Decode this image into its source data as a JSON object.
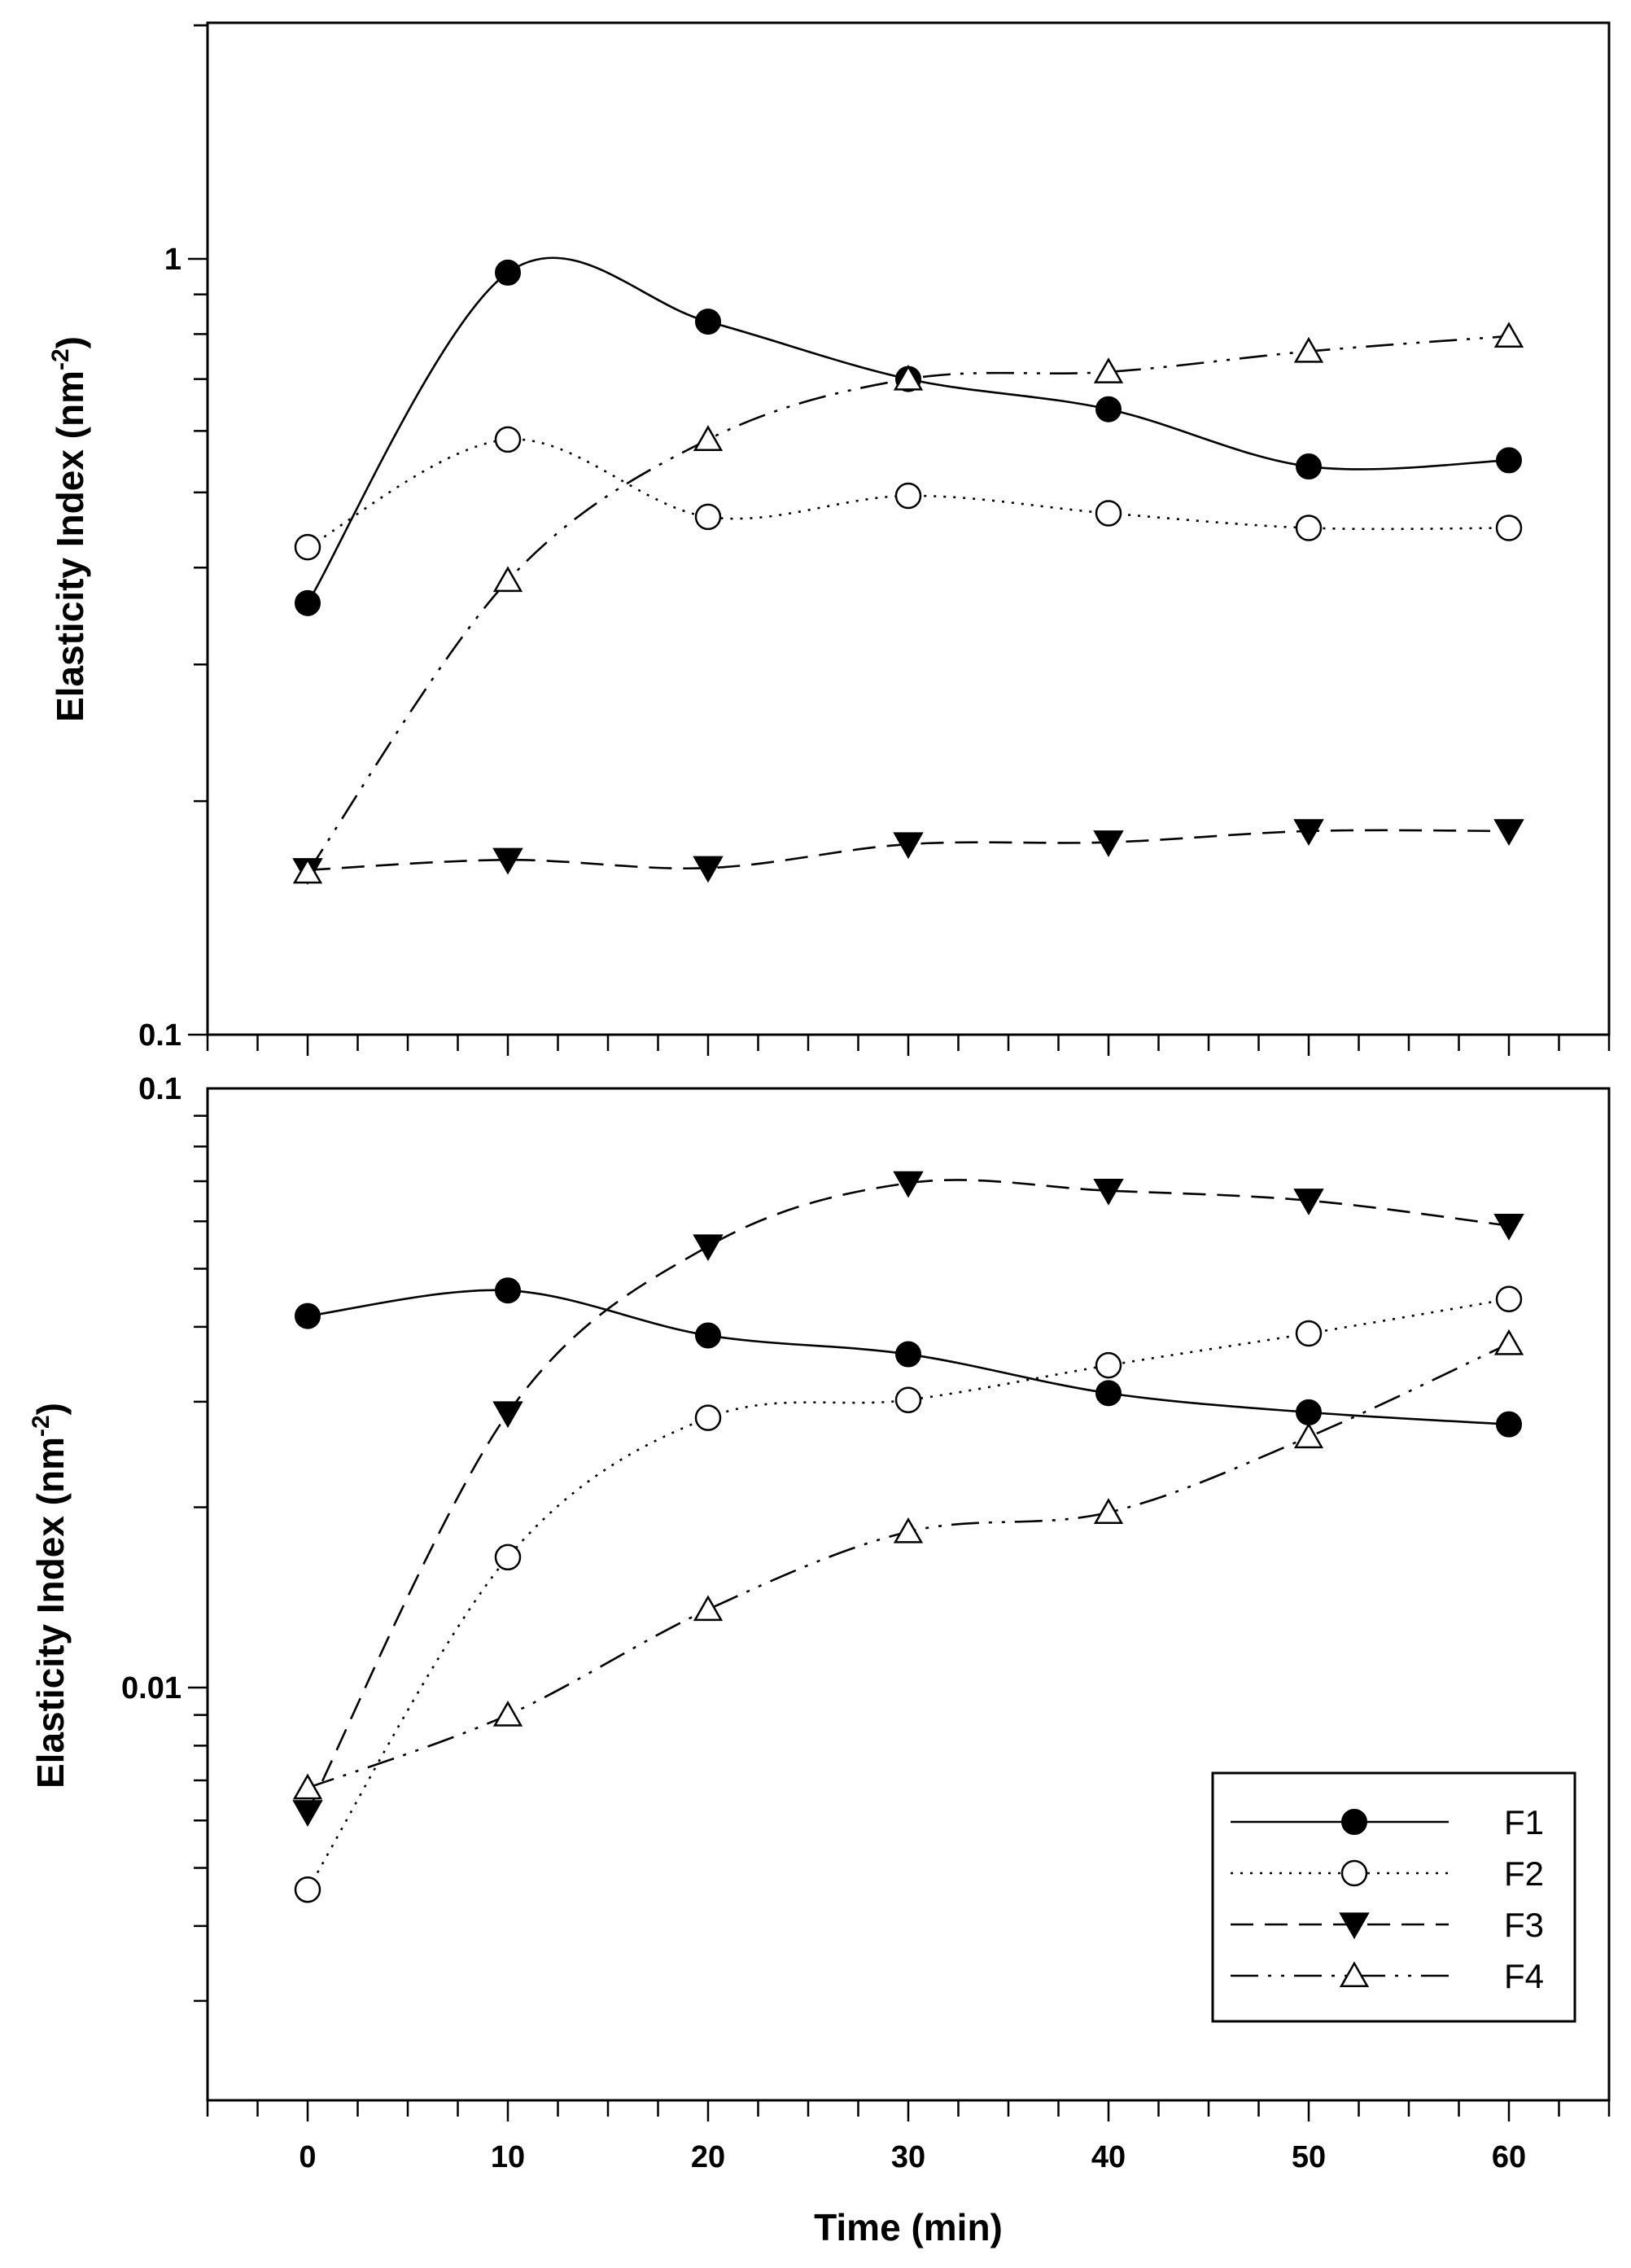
{
  "chart_data": [
    {
      "type": "line",
      "panel": "top",
      "xlabel": "Time (min)",
      "ylabel": "Elasticity Index (nm",
      "ylabel_sup": "-2",
      "ylabel_close": ")",
      "yscale": "log",
      "xlim": [
        -5,
        65
      ],
      "ylim": [
        0.1,
        2
      ],
      "y_tick_labels": [
        {
          "value": 1,
          "label": "1"
        },
        {
          "value": 0.1,
          "label": "0.1"
        }
      ],
      "x": [
        0,
        10,
        20,
        30,
        40,
        50,
        60
      ],
      "series": [
        {
          "name": "F1",
          "values": [
            0.36,
            0.96,
            0.83,
            0.7,
            0.64,
            0.54,
            0.55
          ]
        },
        {
          "name": "F2",
          "values": [
            0.425,
            0.585,
            0.465,
            0.495,
            0.47,
            0.45,
            0.45
          ]
        },
        {
          "name": "F3",
          "values": [
            0.163,
            0.168,
            0.164,
            0.176,
            0.177,
            0.183,
            0.183
          ]
        },
        {
          "name": "F4",
          "values": [
            0.162,
            0.385,
            0.585,
            0.7,
            0.715,
            0.76,
            0.795
          ]
        }
      ]
    },
    {
      "type": "line",
      "panel": "bottom",
      "xlabel": "Time (min)",
      "ylabel": "Elasticity Index (nm",
      "ylabel_sup": "-2",
      "ylabel_close": ")",
      "yscale": "log",
      "xlim": [
        -5,
        65
      ],
      "ylim": [
        0.0023,
        0.1
      ],
      "x_tick_labels": [
        "0",
        "10",
        "20",
        "30",
        "40",
        "50",
        "60"
      ],
      "y_tick_labels": [
        {
          "value": 0.1,
          "label": "0.1"
        },
        {
          "value": 0.01,
          "label": "0.01"
        }
      ],
      "x": [
        0,
        10,
        20,
        30,
        40,
        50,
        60
      ],
      "series": [
        {
          "name": "F1",
          "values": [
            0.0417,
            0.046,
            0.0387,
            0.036,
            0.031,
            0.0288,
            0.0275
          ]
        },
        {
          "name": "F2",
          "values": [
            0.0046,
            0.0165,
            0.0282,
            0.0302,
            0.0345,
            0.039,
            0.0445
          ]
        },
        {
          "name": "F3",
          "values": [
            0.0062,
            0.0287,
            0.0545,
            0.0695,
            0.0675,
            0.065,
            0.059
          ]
        },
        {
          "name": "F4",
          "values": [
            0.0068,
            0.009,
            0.0135,
            0.0182,
            0.0196,
            0.0262,
            0.0375
          ]
        }
      ]
    }
  ],
  "legend": {
    "placement": "bottom-right of lower panel",
    "entries": [
      "F1",
      "F2",
      "F3",
      "F4"
    ]
  },
  "series_styles": {
    "F1": {
      "line": "solid",
      "marker": "filled-circle",
      "color": "#000000"
    },
    "F2": {
      "line": "dotted",
      "marker": "open-circle",
      "color": "#000000"
    },
    "F3": {
      "line": "dashed",
      "marker": "filled-triangle-down",
      "color": "#000000"
    },
    "F4": {
      "line": "dash-dot-dot",
      "marker": "open-triangle-up",
      "color": "#000000"
    }
  }
}
